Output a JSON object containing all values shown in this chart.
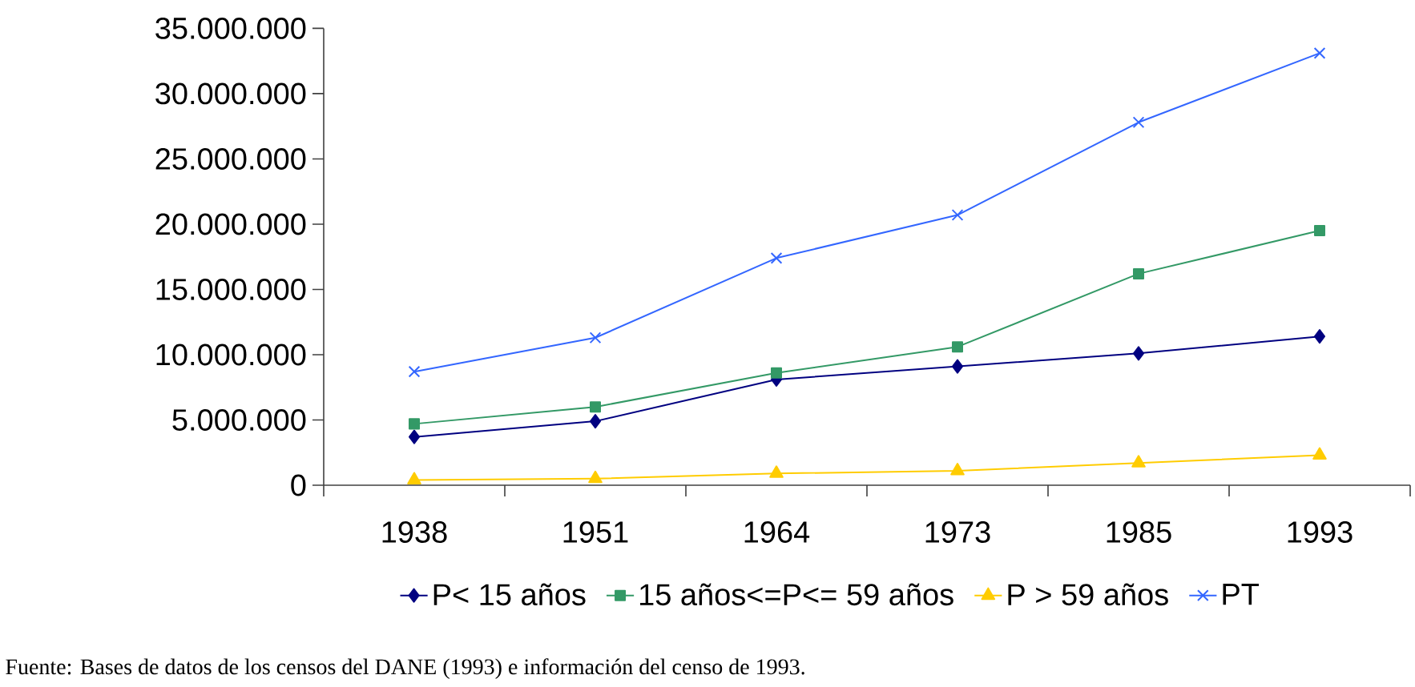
{
  "chart_data": {
    "type": "line",
    "categories": [
      "1938",
      "1951",
      "1964",
      "1973",
      "1985",
      "1993"
    ],
    "series": [
      {
        "name": "P< 15 años",
        "color": "#000080",
        "marker": "diamond",
        "values": [
          3700000,
          4900000,
          8100000,
          9100000,
          10100000,
          11400000
        ]
      },
      {
        "name": "15 años<=P<= 59 años",
        "color": "#339966",
        "marker": "square",
        "values": [
          4700000,
          6000000,
          8600000,
          10600000,
          16200000,
          19500000
        ]
      },
      {
        "name": "P > 59 años",
        "color": "#ffcc00",
        "marker": "triangle",
        "values": [
          400000,
          500000,
          900000,
          1100000,
          1700000,
          2300000
        ]
      },
      {
        "name": "PT",
        "color": "#3366ff",
        "marker": "cross",
        "values": [
          8700000,
          11300000,
          17400000,
          20700000,
          27800000,
          33100000
        ]
      }
    ],
    "ylim": [
      0,
      35000000
    ],
    "yticks": [
      0,
      {
        "value": 5000000,
        "label": "5.000.000"
      },
      {
        "value": 10000000,
        "label": "10.000.000"
      },
      {
        "value": 15000000,
        "label": "15.000.000"
      },
      {
        "value": 20000000,
        "label": "20.000.000"
      },
      {
        "value": 25000000,
        "label": "25.000.000"
      },
      {
        "value": 30000000,
        "label": "30.000.000"
      },
      {
        "value": 35000000,
        "label": "35.000.000"
      }
    ],
    "grid": false,
    "legend": "bottom",
    "line_style": "solid",
    "annotations": [
      "Fuente: Bases de datos de los censos del DANE (1993) e información del censo de 1993."
    ]
  }
}
